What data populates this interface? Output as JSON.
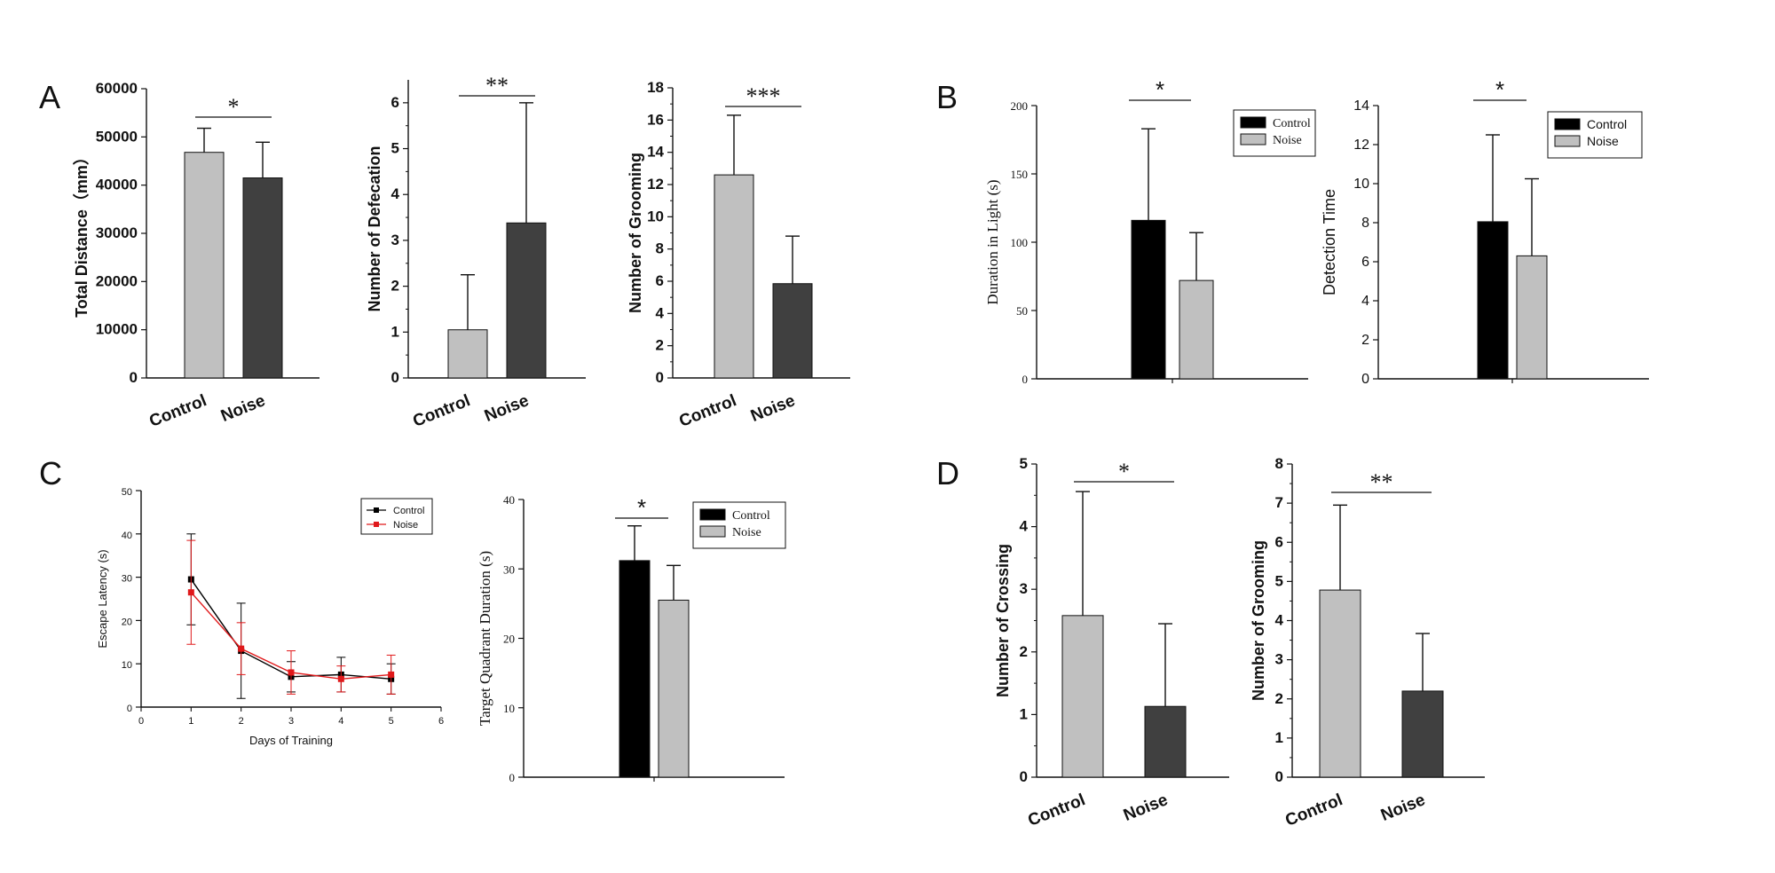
{
  "panels": {
    "A": "A",
    "B": "B",
    "C": "C",
    "D": "D"
  },
  "colors": {
    "control_gray": "#c0c0c0",
    "noise_dark": "#404040",
    "black": "#000000",
    "light_gray": "#c0c0c0",
    "red": "#e0191b",
    "axis": "#111111"
  },
  "chart_data": [
    {
      "id": "A1",
      "type": "bar",
      "panel": "A",
      "categories": [
        "Control",
        "Noise"
      ],
      "values": [
        46800,
        41500
      ],
      "errors": [
        5000,
        7400
      ],
      "ylabel": "Total Distance（mm）",
      "ylim": [
        0,
        60000
      ],
      "yticks": [
        0,
        10000,
        20000,
        30000,
        40000,
        50000,
        60000
      ],
      "significance": "*"
    },
    {
      "id": "A2",
      "type": "bar",
      "panel": "A",
      "categories": [
        "Control",
        "Noise"
      ],
      "values": [
        1.05,
        3.38
      ],
      "errors": [
        1.2,
        2.62
      ],
      "ylabel": "Number of Defecation",
      "ylim": [
        0,
        6.5
      ],
      "yticks": [
        0,
        1,
        2,
        3,
        4,
        5,
        6
      ],
      "significance": "**"
    },
    {
      "id": "A3",
      "type": "bar",
      "panel": "A",
      "categories": [
        "Control",
        "Noise"
      ],
      "values": [
        12.6,
        5.85
      ],
      "errors": [
        3.7,
        2.95
      ],
      "ylabel": "Number of Grooming",
      "ylim": [
        0,
        18
      ],
      "yticks": [
        0,
        2,
        4,
        6,
        8,
        10,
        12,
        14,
        16,
        18
      ],
      "significance": "***"
    },
    {
      "id": "B1",
      "type": "bar",
      "panel": "B",
      "series": [
        {
          "name": "Control",
          "values": [
            116
          ],
          "errors": [
            67
          ]
        },
        {
          "name": "Noise",
          "values": [
            72
          ],
          "errors": [
            35
          ]
        }
      ],
      "ylabel": "Duration in Light (s)",
      "ylim": [
        0,
        200
      ],
      "yticks": [
        0,
        50,
        100,
        150,
        200
      ],
      "legend": [
        "Control",
        "Noise"
      ],
      "significance": "*"
    },
    {
      "id": "B2",
      "type": "bar",
      "panel": "B",
      "series": [
        {
          "name": "Control",
          "values": [
            8.05
          ],
          "errors": [
            4.45
          ]
        },
        {
          "name": "Noise",
          "values": [
            6.3
          ],
          "errors": [
            3.95
          ]
        }
      ],
      "ylabel": "Detection Time",
      "ylim": [
        0,
        14
      ],
      "yticks": [
        0,
        2,
        4,
        6,
        8,
        10,
        12,
        14
      ],
      "legend": [
        "Control",
        "Noise"
      ],
      "significance": "*"
    },
    {
      "id": "C1",
      "type": "line",
      "panel": "C",
      "x": [
        1,
        2,
        3,
        4,
        5
      ],
      "series": [
        {
          "name": "Control",
          "values": [
            29.5,
            13,
            7,
            7.5,
            6.5
          ],
          "errors": [
            10.5,
            11,
            3.5,
            4,
            3.5
          ]
        },
        {
          "name": "Noise",
          "values": [
            26.5,
            13.5,
            8,
            6.5,
            7.5
          ],
          "errors": [
            12,
            6,
            5,
            3,
            4.5
          ]
        }
      ],
      "xlabel": "Days of Training",
      "ylabel": "Escape Latency (s)",
      "xlim": [
        0,
        6
      ],
      "ylim": [
        0,
        50
      ],
      "xticks": [
        0,
        1,
        2,
        3,
        4,
        5,
        6
      ],
      "yticks": [
        0,
        10,
        20,
        30,
        40,
        50
      ],
      "legend": [
        "Control",
        "Noise"
      ]
    },
    {
      "id": "C2",
      "type": "bar",
      "panel": "C",
      "series": [
        {
          "name": "Control",
          "values": [
            31.2
          ],
          "errors": [
            5
          ]
        },
        {
          "name": "Noise",
          "values": [
            25.5
          ],
          "errors": [
            5
          ]
        }
      ],
      "ylabel": "Target Quadrant Duration (s)",
      "ylim": [
        0,
        40
      ],
      "yticks": [
        0,
        10,
        20,
        30,
        40
      ],
      "legend": [
        "Control",
        "Noise"
      ],
      "significance": "*"
    },
    {
      "id": "D1",
      "type": "bar",
      "panel": "D",
      "categories": [
        "Control",
        "Noise"
      ],
      "values": [
        2.58,
        1.13
      ],
      "errors": [
        1.98,
        1.32
      ],
      "ylabel": "Number of Crossing",
      "ylim": [
        0,
        5
      ],
      "yticks": [
        0,
        1,
        2,
        3,
        4,
        5
      ],
      "significance": "*"
    },
    {
      "id": "D2",
      "type": "bar",
      "panel": "D",
      "categories": [
        "Control",
        "Noise"
      ],
      "values": [
        4.78,
        2.2
      ],
      "errors": [
        2.17,
        1.47
      ],
      "ylabel": "Number of Grooming",
      "ylim": [
        0,
        8
      ],
      "yticks": [
        0,
        1,
        2,
        3,
        4,
        5,
        6,
        7,
        8
      ],
      "significance": "**"
    }
  ]
}
